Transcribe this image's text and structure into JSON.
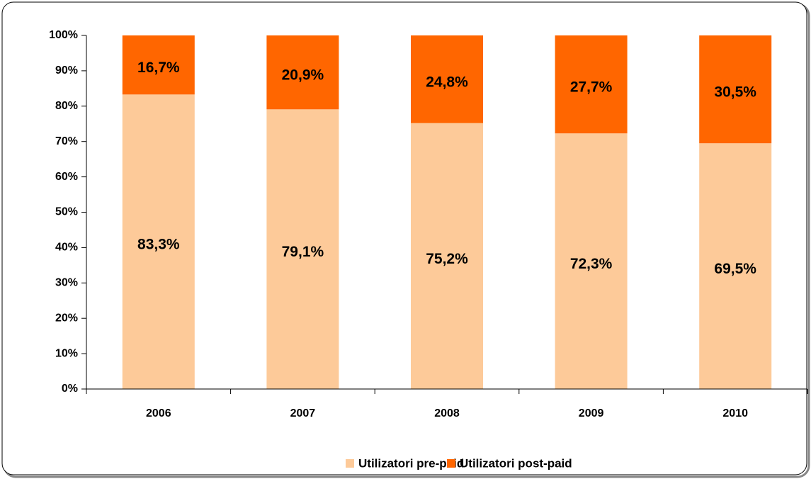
{
  "chart_data": {
    "type": "stacked_bar",
    "categories": [
      "2006",
      "2007",
      "2008",
      "2009",
      "2010"
    ],
    "series": [
      {
        "name": "Utilizatori pre-paid",
        "color": "#fdca99",
        "values": [
          83.3,
          79.1,
          75.2,
          72.3,
          69.5
        ],
        "value_labels": [
          "83,3%",
          "79,1%",
          "75,2%",
          "72,3%",
          "69,5%"
        ]
      },
      {
        "name": "Utilizatori post-paid",
        "color": "#ff6600",
        "values": [
          16.7,
          20.9,
          24.8,
          27.7,
          30.5
        ],
        "value_labels": [
          "16,7%",
          "20,9%",
          "24,8%",
          "27,7%",
          "30,5%"
        ]
      }
    ],
    "ylim": [
      0,
      100
    ],
    "yticks": [
      {
        "value": 0,
        "label": "0%"
      },
      {
        "value": 10,
        "label": "10%"
      },
      {
        "value": 20,
        "label": "20%"
      },
      {
        "value": 30,
        "label": "30%"
      },
      {
        "value": 40,
        "label": "40%"
      },
      {
        "value": 50,
        "label": "50%"
      },
      {
        "value": 60,
        "label": "60%"
      },
      {
        "value": 70,
        "label": "70%"
      },
      {
        "value": 80,
        "label": "80%"
      },
      {
        "value": 90,
        "label": "90%"
      },
      {
        "value": 100,
        "label": "100%"
      }
    ],
    "legend": "bottom"
  }
}
